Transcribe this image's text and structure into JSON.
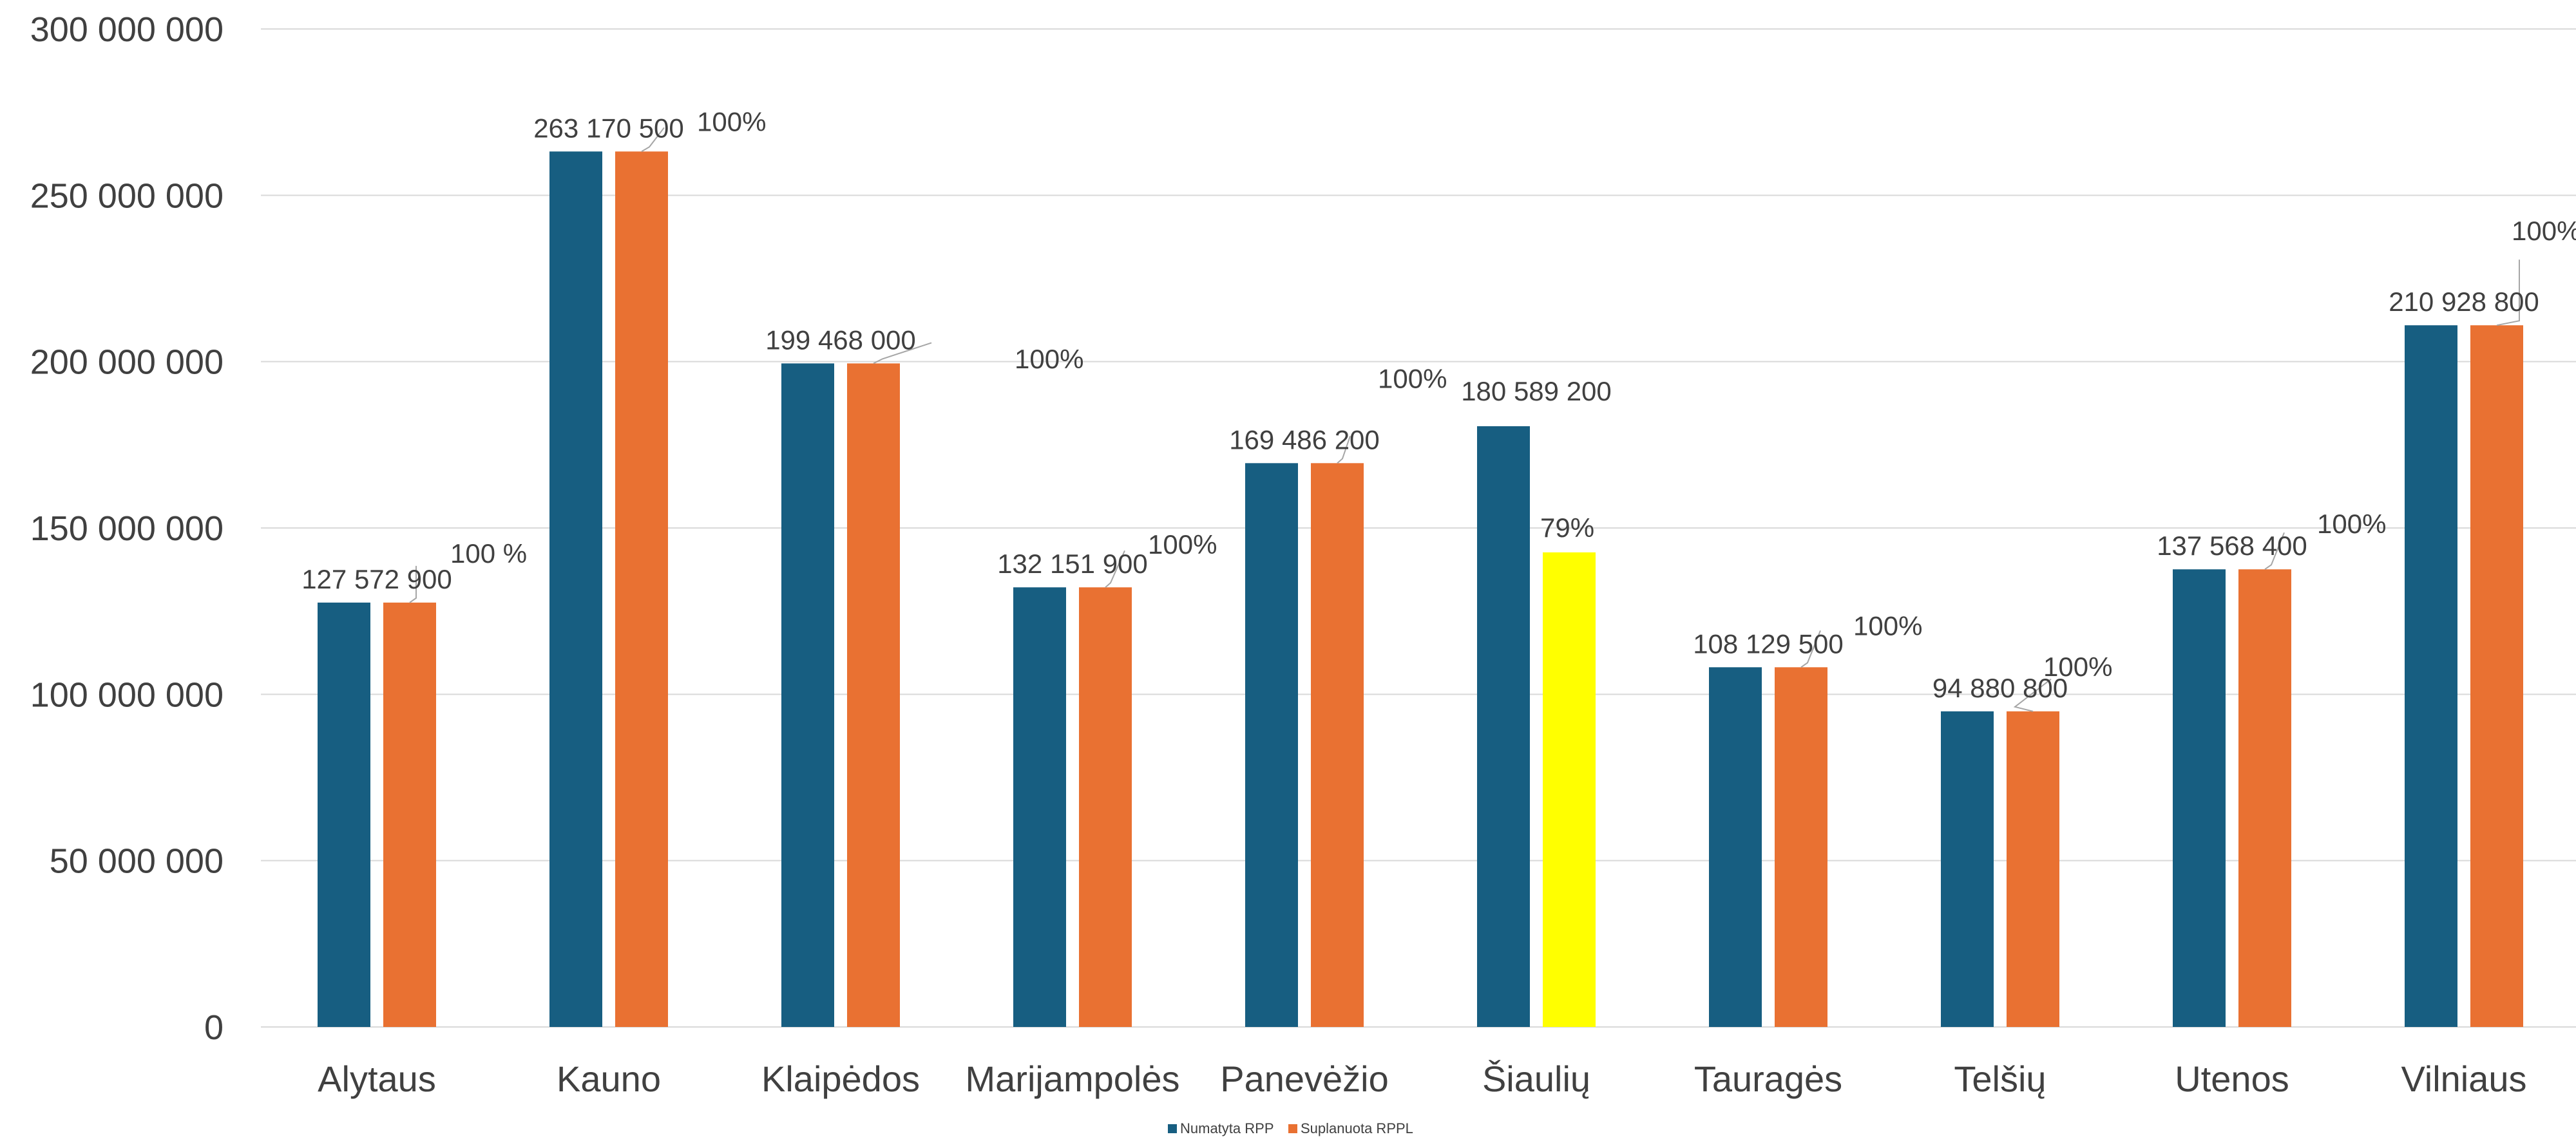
{
  "chart_data": {
    "type": "bar",
    "categories": [
      "Alytaus",
      "Kauno",
      "Klaipėdos",
      "Marijampolės",
      "Panevėžio",
      "Šiaulių",
      "Tauragės",
      "Telšių",
      "Utenos",
      "Vilniaus"
    ],
    "series": [
      {
        "name": "Numatyta RPP",
        "color": "#175e81",
        "values": [
          127572900,
          263170500,
          199468000,
          132151900,
          169486200,
          180589200,
          108129500,
          94880800,
          137568400,
          210928800
        ],
        "labels": [
          "127 572 900",
          "263 170 500",
          "199 468 000",
          "132 151 900",
          "169 486 200",
          "180 589 200",
          "108 129 500",
          "94 880 800",
          "137 568 400",
          "210 928 800"
        ]
      },
      {
        "name": "Suplanuota RPPL",
        "color": "#e97132",
        "highlight_color": "#ffff00",
        "highlight_index": 5,
        "values": [
          127572900,
          263170500,
          199468000,
          132151900,
          169486200,
          142665468,
          108129500,
          94880800,
          137568400,
          210928800
        ],
        "labels": [
          "100 %",
          "100%",
          "",
          "100%",
          "100%",
          "79%",
          "100%",
          "100%",
          "100%",
          "100%"
        ]
      }
    ],
    "floating_labels": [
      "100%"
    ],
    "yticks": [
      "0",
      "50 000 000",
      "100 000 000",
      "150 000 000",
      "200 000 000",
      "250 000 000",
      "300 000 000"
    ],
    "ylim": [
      0,
      300000000
    ],
    "grid": true,
    "legend": "bottom-center",
    "title": "",
    "xlabel": "",
    "ylabel": ""
  }
}
